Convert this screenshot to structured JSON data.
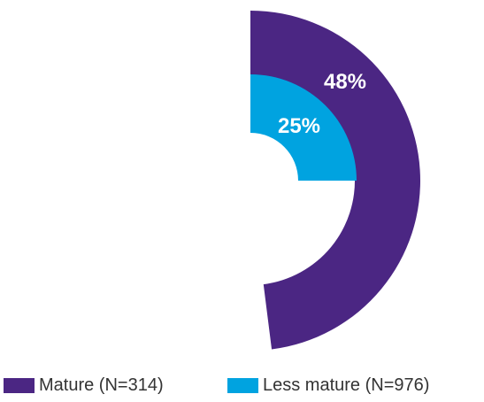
{
  "chart_data": {
    "type": "radial-bar",
    "series": [
      {
        "name": "Mature (N=314)",
        "value": 48,
        "label": "48%",
        "color": "#4b2683"
      },
      {
        "name": "Less mature (N=976)",
        "value": 25,
        "label": "25%",
        "color": "#00a3e0"
      }
    ],
    "value_unit": "%",
    "legend_position": "bottom"
  }
}
